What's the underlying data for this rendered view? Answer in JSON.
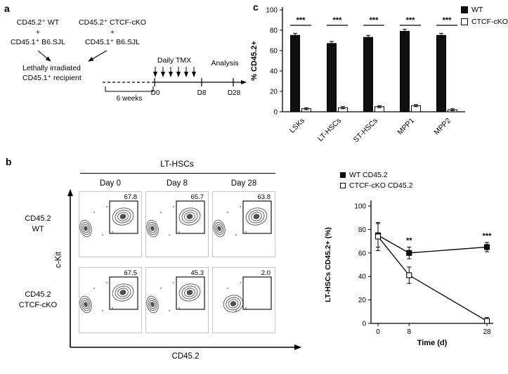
{
  "panel_a": {
    "label": "a",
    "donor1": [
      "CD45.2⁺ WT",
      "+",
      "CD45.1⁺ B6.SJL"
    ],
    "donor2": [
      "CD45.2⁺ CTCF-cKO",
      "+",
      "CD45.1⁺ B6.SJL"
    ],
    "recipient": [
      "Lethally irradiated",
      "CD45.1⁺ recipient"
    ],
    "duration": "6 weeks",
    "treatment": "Daily TMX",
    "analysis": "Analysis",
    "timepoints": [
      "D0",
      "D8",
      "D28"
    ]
  },
  "panel_b": {
    "label": "b",
    "title": "LT-HSCs",
    "columns": [
      "Day 0",
      "Day 8",
      "Day 28"
    ],
    "rows": [
      {
        "label": [
          "CD45.2",
          "WT"
        ],
        "gates": [
          "67.8",
          "65.7",
          "63.8"
        ]
      },
      {
        "label": [
          "CD45.2",
          "CTCF-cKO"
        ],
        "gates": [
          "67.5",
          "45.3",
          "2.0"
        ]
      }
    ],
    "x_axis": "CD45.2",
    "y_axis": "c-Kit"
  },
  "panel_c": {
    "label": "c"
  },
  "colors": {
    "wt": "#101010",
    "cko": "#ffffff"
  },
  "chart_data": [
    {
      "type": "bar",
      "panel": "c",
      "title": "",
      "xlabel": "",
      "ylabel": "% CD45.2+",
      "ylim": [
        0,
        100
      ],
      "yticks": [
        0,
        20,
        40,
        60,
        80,
        100
      ],
      "categories": [
        "LSKs",
        "LT-HSCs",
        "ST-HSCs",
        "MPP1",
        "MPP2"
      ],
      "series": [
        {
          "name": "WT",
          "fill": "#101010",
          "values": [
            75,
            67,
            73,
            79,
            75
          ],
          "errors": [
            2,
            2,
            2,
            2,
            2
          ]
        },
        {
          "name": "CTCF-cKO",
          "fill": "#ffffff",
          "values": [
            3,
            4,
            5,
            6,
            2
          ],
          "errors": [
            1,
            1,
            1,
            1,
            1
          ]
        }
      ],
      "significance": [
        "***",
        "***",
        "***",
        "***",
        "***"
      ],
      "legend": [
        "WT",
        "CTCF-cKO"
      ],
      "legend_position": "top-right",
      "grid": false
    },
    {
      "type": "line",
      "panel": "b",
      "title": "",
      "xlabel": "Time (d)",
      "ylabel": "LT-HSCs CD45.2+ (%)",
      "x": [
        0,
        8,
        28
      ],
      "xticks": [
        0,
        8,
        28
      ],
      "ylim": [
        0,
        100
      ],
      "yticks": [
        0,
        20,
        40,
        60,
        80,
        100
      ],
      "series": [
        {
          "name": "WT CD45.2",
          "marker": "filled-square",
          "values": [
            75,
            60,
            65
          ],
          "errors": [
            10,
            5,
            4
          ]
        },
        {
          "name": "CTCF-cKO CD45.2",
          "marker": "open-square",
          "values": [
            74,
            41,
            2
          ],
          "errors": [
            12,
            7,
            3
          ]
        }
      ],
      "significance": [
        {
          "x": 8,
          "label": "**"
        },
        {
          "x": 28,
          "label": "***"
        }
      ],
      "legend_position": "top-left",
      "grid": false
    }
  ]
}
